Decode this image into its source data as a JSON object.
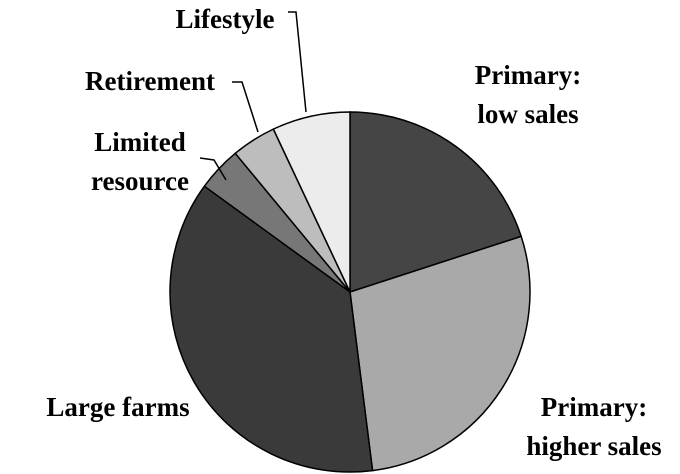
{
  "chart_data": {
    "type": "pie",
    "categories": [
      [
        "Primary:",
        "low sales"
      ],
      [
        "Primary:",
        "higher sales"
      ],
      [
        "Large farms"
      ],
      [
        "Limited",
        "resource"
      ],
      [
        "Retirement"
      ],
      [
        "Lifestyle"
      ]
    ],
    "values": [
      20,
      28,
      37,
      4,
      4,
      7
    ],
    "colors": [
      "#454545",
      "#a9a9a9",
      "#3a3a3a",
      "#777777",
      "#bdbdbd",
      "#ececec"
    ]
  }
}
